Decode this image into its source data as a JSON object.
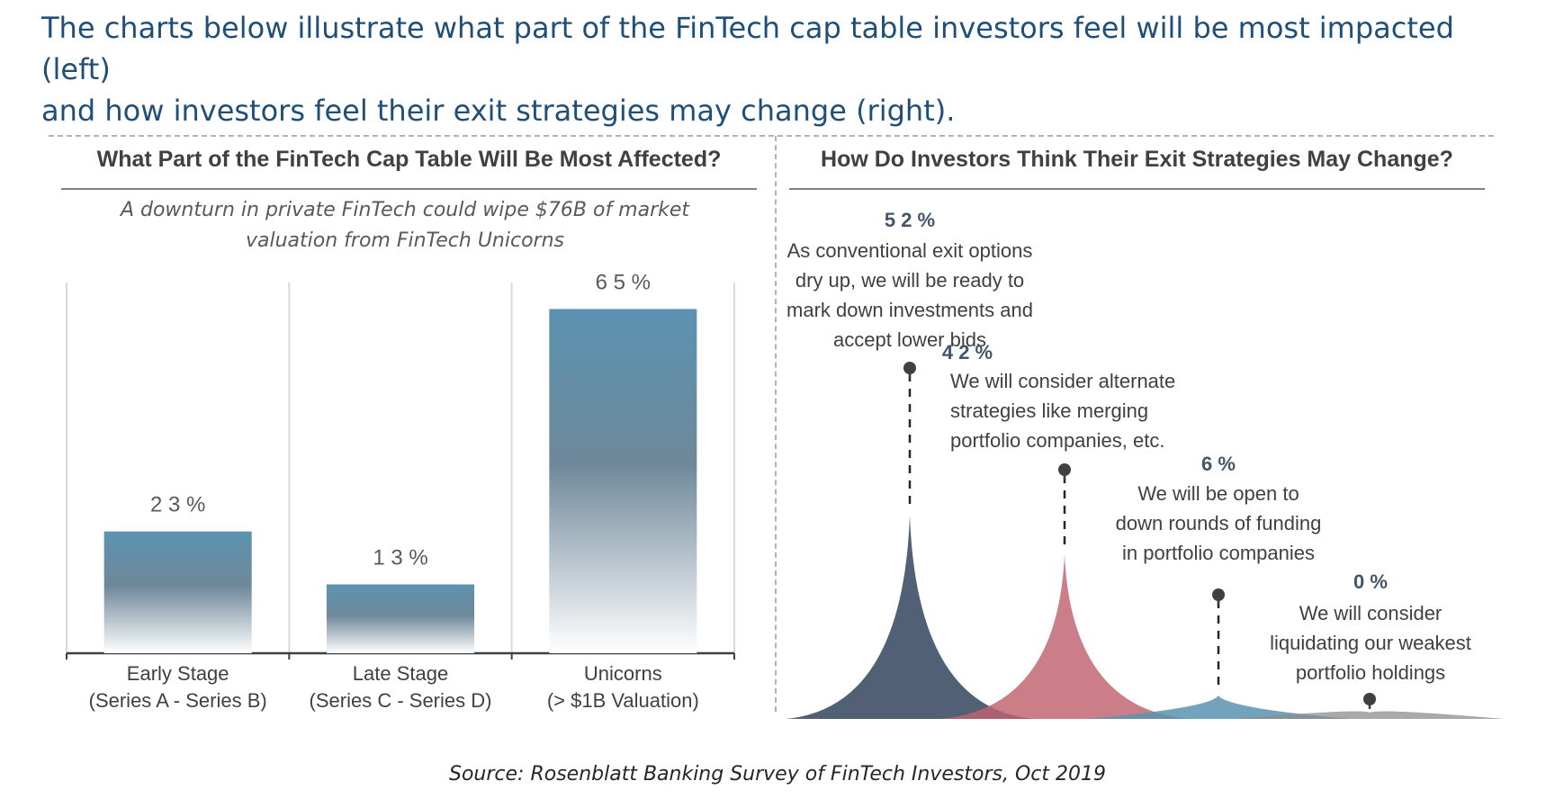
{
  "intro": {
    "line1": "The charts below illustrate what part of the FinTech cap table investors feel will be most impacted (left)",
    "line2": "and how investors feel their exit strategies may change (right)."
  },
  "source": "Source: Rosenblatt Banking Survey of FinTech Investors, Oct 2019",
  "chart_data": [
    {
      "type": "bar",
      "title": "What Part of the FinTech Cap Table Will Be Most Affected?",
      "subtitle_line1": "A downturn in private FinTech could wipe $76B of market",
      "subtitle_line2": "valuation from FinTech Unicorns",
      "categories": [
        {
          "line1": "Early Stage",
          "line2": "(Series A - Series B)"
        },
        {
          "line1": "Late Stage",
          "line2": "(Series C - Series D)"
        },
        {
          "line1": "Unicorns",
          "line2": "(> $1B Valuation)"
        }
      ],
      "values": [
        23,
        13,
        65
      ],
      "labels": [
        "2 3 %",
        "1 3 %",
        "6 5 %"
      ],
      "ylim": [
        0,
        70
      ],
      "bar_color": "#5b93b0",
      "grid": false
    },
    {
      "type": "area",
      "title": "How Do Investors Think Their Exit Strategies May Change?",
      "series": [
        {
          "value": 52,
          "label": "5 2 %",
          "text": [
            "As conventional exit options",
            "dry up, we will be ready to",
            "mark down investments and",
            "accept lower bids"
          ],
          "color": "#44546a"
        },
        {
          "value": 42,
          "label": "4 2 %",
          "text": [
            "We will consider alternate",
            "strategies like merging",
            "portfolio companies, etc."
          ],
          "color": "#c0616e"
        },
        {
          "value": 6,
          "label": "6 %",
          "text": [
            "We will be open to",
            "down rounds of funding",
            "in portfolio companies"
          ],
          "color": "#5b93b0"
        },
        {
          "value": 0,
          "label": "0 %",
          "text": [
            "We will consider",
            "liquidating our weakest",
            "portfolio holdings"
          ],
          "color": "#8c8c8c"
        }
      ],
      "ylim": [
        0,
        52
      ],
      "grid": false
    }
  ]
}
